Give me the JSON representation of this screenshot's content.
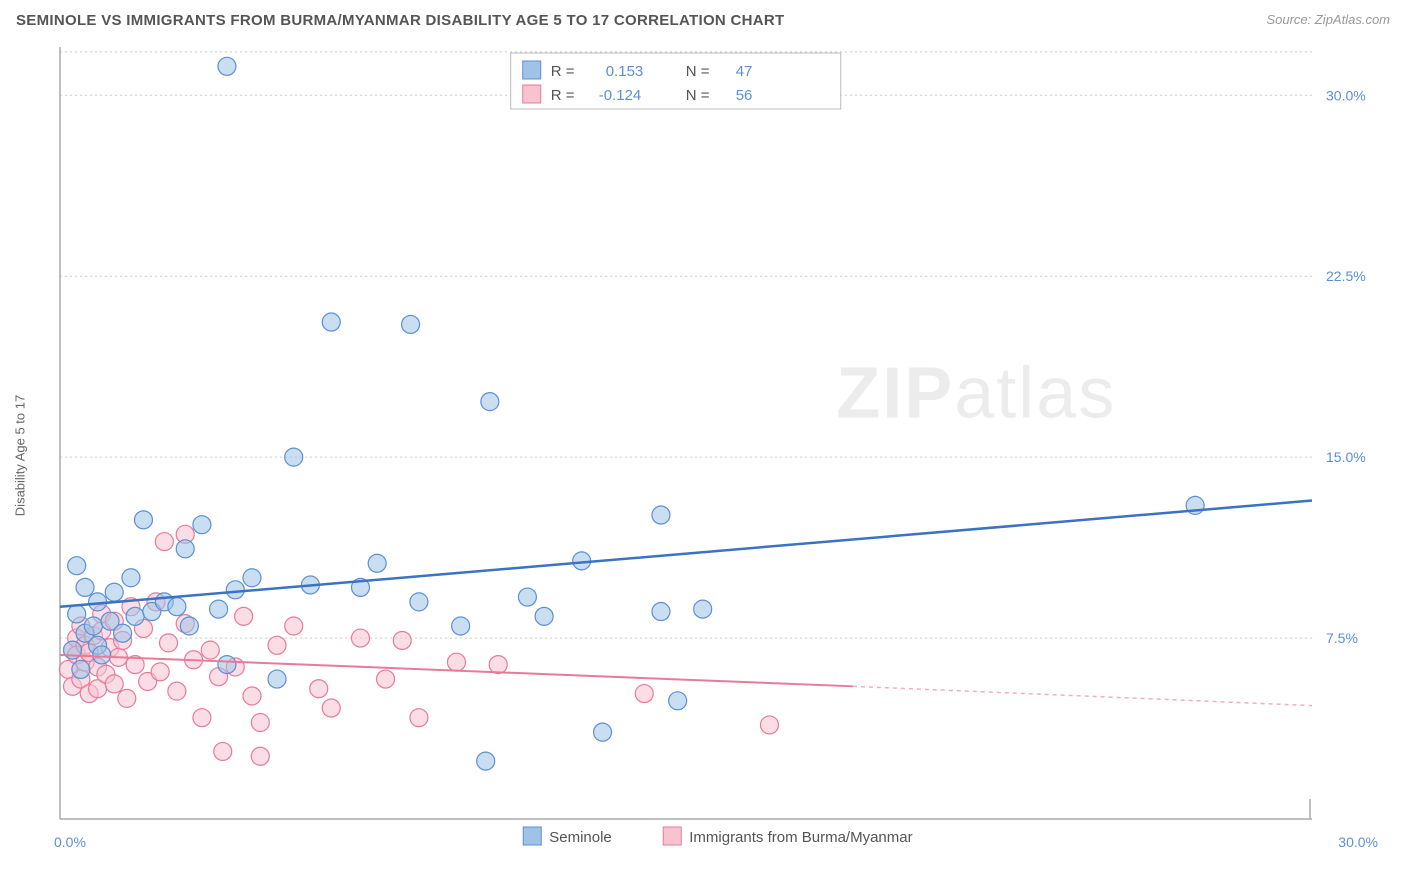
{
  "header": {
    "title": "SEMINOLE VS IMMIGRANTS FROM BURMA/MYANMAR DISABILITY AGE 5 TO 17 CORRELATION CHART",
    "source": "Source: ZipAtlas.com"
  },
  "ylabel": "Disability Age 5 to 17",
  "watermark": {
    "zip": "ZIP",
    "atlas": "atlas"
  },
  "chart": {
    "type": "scatter",
    "xlim": [
      0,
      30
    ],
    "ylim": [
      0,
      32
    ],
    "x_ticks": [
      {
        "v": 0,
        "label": "0.0%"
      },
      {
        "v": 30,
        "label": "30.0%"
      }
    ],
    "y_ticks": [
      {
        "v": 7.5,
        "label": "7.5%"
      },
      {
        "v": 15.0,
        "label": "15.0%"
      },
      {
        "v": 22.5,
        "label": "22.5%"
      },
      {
        "v": 30.0,
        "label": "30.0%"
      }
    ],
    "grid_color": "#cccccc",
    "background_color": "#ffffff",
    "marker_radius": 9,
    "series": [
      {
        "name": "Seminole",
        "color_fill": "#9fc3e7",
        "color_stroke": "#5b8fd6",
        "R": "0.153",
        "N": "47",
        "trend": {
          "x1": 0,
          "y1": 8.8,
          "x2": 30,
          "y2": 13.2,
          "color": "#3a72c4"
        },
        "points": [
          [
            0.3,
            7.0
          ],
          [
            0.4,
            8.5
          ],
          [
            0.4,
            10.5
          ],
          [
            0.5,
            6.2
          ],
          [
            0.6,
            7.7
          ],
          [
            0.6,
            9.6
          ],
          [
            0.8,
            8.0
          ],
          [
            0.9,
            9.0
          ],
          [
            0.9,
            7.2
          ],
          [
            1.0,
            6.8
          ],
          [
            1.2,
            8.2
          ],
          [
            1.3,
            9.4
          ],
          [
            1.5,
            7.7
          ],
          [
            1.7,
            10.0
          ],
          [
            1.8,
            8.4
          ],
          [
            2.0,
            12.4
          ],
          [
            2.2,
            8.6
          ],
          [
            2.5,
            9.0
          ],
          [
            2.8,
            8.8
          ],
          [
            3.0,
            11.2
          ],
          [
            3.1,
            8.0
          ],
          [
            3.4,
            12.2
          ],
          [
            3.8,
            8.7
          ],
          [
            4.0,
            6.4
          ],
          [
            4.0,
            31.2
          ],
          [
            4.2,
            9.5
          ],
          [
            4.6,
            10.0
          ],
          [
            5.2,
            5.8
          ],
          [
            5.6,
            15.0
          ],
          [
            6.0,
            9.7
          ],
          [
            6.5,
            20.6
          ],
          [
            7.2,
            9.6
          ],
          [
            7.6,
            10.6
          ],
          [
            8.4,
            20.5
          ],
          [
            8.6,
            9.0
          ],
          [
            10.2,
            2.4
          ],
          [
            10.3,
            17.3
          ],
          [
            11.2,
            9.2
          ],
          [
            11.6,
            8.4
          ],
          [
            12.5,
            10.7
          ],
          [
            13.0,
            3.6
          ],
          [
            14.4,
            12.6
          ],
          [
            14.4,
            8.6
          ],
          [
            14.8,
            4.9
          ],
          [
            15.4,
            8.7
          ],
          [
            27.2,
            13.0
          ],
          [
            9.6,
            8.0
          ]
        ]
      },
      {
        "name": "Immigrants from Burma/Myanmar",
        "color_fill": "#f7c3cf",
        "color_stroke": "#e87a9a",
        "R": "-0.124",
        "N": "56",
        "trend": {
          "x1": 0,
          "y1": 6.8,
          "x2": 19,
          "y2": 5.5,
          "x3": 30,
          "y3": 4.7,
          "color": "#e87a9a"
        },
        "points": [
          [
            0.2,
            6.2
          ],
          [
            0.3,
            7.0
          ],
          [
            0.3,
            5.5
          ],
          [
            0.4,
            6.8
          ],
          [
            0.4,
            7.5
          ],
          [
            0.5,
            5.8
          ],
          [
            0.5,
            8.0
          ],
          [
            0.6,
            6.5
          ],
          [
            0.6,
            7.2
          ],
          [
            0.7,
            5.2
          ],
          [
            0.7,
            6.9
          ],
          [
            0.8,
            7.6
          ],
          [
            0.9,
            5.4
          ],
          [
            0.9,
            6.3
          ],
          [
            1.0,
            7.8
          ],
          [
            1.0,
            8.5
          ],
          [
            1.1,
            6.0
          ],
          [
            1.2,
            7.1
          ],
          [
            1.3,
            5.6
          ],
          [
            1.3,
            8.2
          ],
          [
            1.4,
            6.7
          ],
          [
            1.5,
            7.4
          ],
          [
            1.6,
            5.0
          ],
          [
            1.7,
            8.8
          ],
          [
            1.8,
            6.4
          ],
          [
            2.0,
            7.9
          ],
          [
            2.1,
            5.7
          ],
          [
            2.3,
            9.0
          ],
          [
            2.4,
            6.1
          ],
          [
            2.5,
            11.5
          ],
          [
            2.6,
            7.3
          ],
          [
            2.8,
            5.3
          ],
          [
            3.0,
            8.1
          ],
          [
            3.0,
            11.8
          ],
          [
            3.2,
            6.6
          ],
          [
            3.4,
            4.2
          ],
          [
            3.6,
            7.0
          ],
          [
            3.8,
            5.9
          ],
          [
            3.9,
            2.8
          ],
          [
            4.2,
            6.3
          ],
          [
            4.4,
            8.4
          ],
          [
            4.6,
            5.1
          ],
          [
            4.8,
            4.0
          ],
          [
            4.8,
            2.6
          ],
          [
            5.2,
            7.2
          ],
          [
            5.6,
            8.0
          ],
          [
            6.2,
            5.4
          ],
          [
            6.5,
            4.6
          ],
          [
            7.2,
            7.5
          ],
          [
            7.8,
            5.8
          ],
          [
            8.2,
            7.4
          ],
          [
            8.6,
            4.2
          ],
          [
            9.5,
            6.5
          ],
          [
            10.5,
            6.4
          ],
          [
            14.0,
            5.2
          ],
          [
            17.0,
            3.9
          ]
        ]
      }
    ]
  },
  "stat_legend": {
    "R_label": "R =",
    "N_label": "N ="
  },
  "series_legend": {
    "s1": "Seminole",
    "s2": "Immigrants from Burma/Myanmar"
  }
}
